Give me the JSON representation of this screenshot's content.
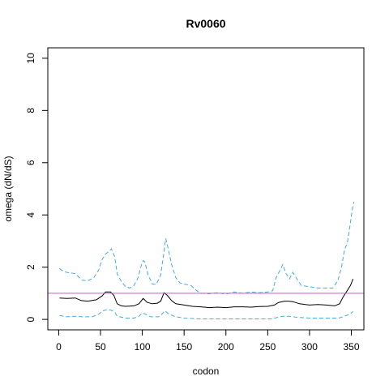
{
  "chart_data": {
    "type": "line",
    "title": "Rv0060",
    "xlabel": "codon",
    "ylabel": "omega (dN/dS)",
    "xlim": [
      -13,
      365
    ],
    "ylim": [
      -0.4,
      10.4
    ],
    "x_ticks": [
      0,
      50,
      100,
      150,
      200,
      250,
      300,
      350
    ],
    "y_ticks": [
      0,
      2,
      4,
      6,
      8,
      10
    ],
    "reference_line": {
      "y": 1,
      "color": "#cc55cc"
    },
    "grid": false,
    "legend": "none",
    "series": [
      {
        "role": "estimate",
        "color": "#000000",
        "style": "solid",
        "points": [
          [
            1,
            0.82
          ],
          [
            10,
            0.8
          ],
          [
            20,
            0.82
          ],
          [
            27,
            0.72
          ],
          [
            35,
            0.7
          ],
          [
            45,
            0.75
          ],
          [
            52,
            0.9
          ],
          [
            56,
            1.05
          ],
          [
            62,
            1.05
          ],
          [
            66,
            0.92
          ],
          [
            70,
            0.6
          ],
          [
            75,
            0.52
          ],
          [
            80,
            0.5
          ],
          [
            90,
            0.52
          ],
          [
            96,
            0.6
          ],
          [
            101,
            0.8
          ],
          [
            106,
            0.65
          ],
          [
            112,
            0.6
          ],
          [
            118,
            0.62
          ],
          [
            122,
            0.7
          ],
          [
            126,
            1.02
          ],
          [
            130,
            0.92
          ],
          [
            135,
            0.72
          ],
          [
            140,
            0.6
          ],
          [
            150,
            0.55
          ],
          [
            160,
            0.5
          ],
          [
            170,
            0.48
          ],
          [
            180,
            0.45
          ],
          [
            190,
            0.47
          ],
          [
            200,
            0.45
          ],
          [
            210,
            0.48
          ],
          [
            220,
            0.48
          ],
          [
            230,
            0.47
          ],
          [
            240,
            0.49
          ],
          [
            250,
            0.5
          ],
          [
            258,
            0.55
          ],
          [
            263,
            0.65
          ],
          [
            270,
            0.7
          ],
          [
            275,
            0.7
          ],
          [
            280,
            0.68
          ],
          [
            288,
            0.6
          ],
          [
            295,
            0.57
          ],
          [
            300,
            0.55
          ],
          [
            310,
            0.57
          ],
          [
            320,
            0.55
          ],
          [
            330,
            0.52
          ],
          [
            336,
            0.6
          ],
          [
            340,
            0.85
          ],
          [
            345,
            1.1
          ],
          [
            349,
            1.3
          ],
          [
            352,
            1.55
          ]
        ]
      },
      {
        "role": "upper-bound",
        "color": "#44aadd",
        "style": "dashed",
        "points": [
          [
            1,
            1.95
          ],
          [
            5,
            1.85
          ],
          [
            10,
            1.8
          ],
          [
            20,
            1.75
          ],
          [
            28,
            1.5
          ],
          [
            35,
            1.48
          ],
          [
            42,
            1.6
          ],
          [
            48,
            1.9
          ],
          [
            52,
            2.3
          ],
          [
            56,
            2.5
          ],
          [
            60,
            2.6
          ],
          [
            63,
            2.7
          ],
          [
            67,
            2.4
          ],
          [
            70,
            1.75
          ],
          [
            75,
            1.45
          ],
          [
            80,
            1.25
          ],
          [
            85,
            1.2
          ],
          [
            90,
            1.3
          ],
          [
            95,
            1.6
          ],
          [
            99,
            2.1
          ],
          [
            101,
            2.25
          ],
          [
            103,
            2.2
          ],
          [
            107,
            1.7
          ],
          [
            112,
            1.35
          ],
          [
            117,
            1.35
          ],
          [
            122,
            1.7
          ],
          [
            126,
            2.6
          ],
          [
            128,
            3.1
          ],
          [
            131,
            2.7
          ],
          [
            135,
            2.1
          ],
          [
            140,
            1.6
          ],
          [
            145,
            1.4
          ],
          [
            150,
            1.35
          ],
          [
            158,
            1.3
          ],
          [
            165,
            1.1
          ],
          [
            170,
            1.0
          ],
          [
            180,
            0.98
          ],
          [
            190,
            1.02
          ],
          [
            200,
            0.97
          ],
          [
            210,
            1.05
          ],
          [
            220,
            1.0
          ],
          [
            230,
            1.05
          ],
          [
            240,
            1.02
          ],
          [
            250,
            1.05
          ],
          [
            256,
            1.1
          ],
          [
            260,
            1.6
          ],
          [
            265,
            1.9
          ],
          [
            268,
            2.1
          ],
          [
            272,
            1.75
          ],
          [
            276,
            1.55
          ],
          [
            280,
            1.8
          ],
          [
            284,
            1.6
          ],
          [
            290,
            1.3
          ],
          [
            300,
            1.25
          ],
          [
            310,
            1.2
          ],
          [
            320,
            1.2
          ],
          [
            328,
            1.2
          ],
          [
            334,
            1.5
          ],
          [
            338,
            1.95
          ],
          [
            342,
            2.7
          ],
          [
            345,
            2.9
          ],
          [
            348,
            3.5
          ],
          [
            351,
            4.2
          ],
          [
            353,
            4.5
          ]
        ]
      },
      {
        "role": "lower-bound",
        "color": "#44aadd",
        "style": "dashed",
        "points": [
          [
            1,
            0.15
          ],
          [
            10,
            0.1
          ],
          [
            20,
            0.12
          ],
          [
            30,
            0.1
          ],
          [
            40,
            0.1
          ],
          [
            48,
            0.2
          ],
          [
            52,
            0.32
          ],
          [
            58,
            0.38
          ],
          [
            63,
            0.35
          ],
          [
            67,
            0.28
          ],
          [
            70,
            0.12
          ],
          [
            80,
            0.05
          ],
          [
            90,
            0.05
          ],
          [
            96,
            0.12
          ],
          [
            100,
            0.25
          ],
          [
            104,
            0.2
          ],
          [
            110,
            0.1
          ],
          [
            120,
            0.1
          ],
          [
            124,
            0.22
          ],
          [
            127,
            0.33
          ],
          [
            132,
            0.2
          ],
          [
            140,
            0.1
          ],
          [
            150,
            0.05
          ],
          [
            170,
            0.02
          ],
          [
            200,
            0.02
          ],
          [
            230,
            0.02
          ],
          [
            255,
            0.02
          ],
          [
            262,
            0.08
          ],
          [
            268,
            0.12
          ],
          [
            275,
            0.12
          ],
          [
            285,
            0.08
          ],
          [
            300,
            0.05
          ],
          [
            320,
            0.05
          ],
          [
            335,
            0.05
          ],
          [
            342,
            0.12
          ],
          [
            348,
            0.2
          ],
          [
            352,
            0.3
          ]
        ]
      }
    ]
  }
}
